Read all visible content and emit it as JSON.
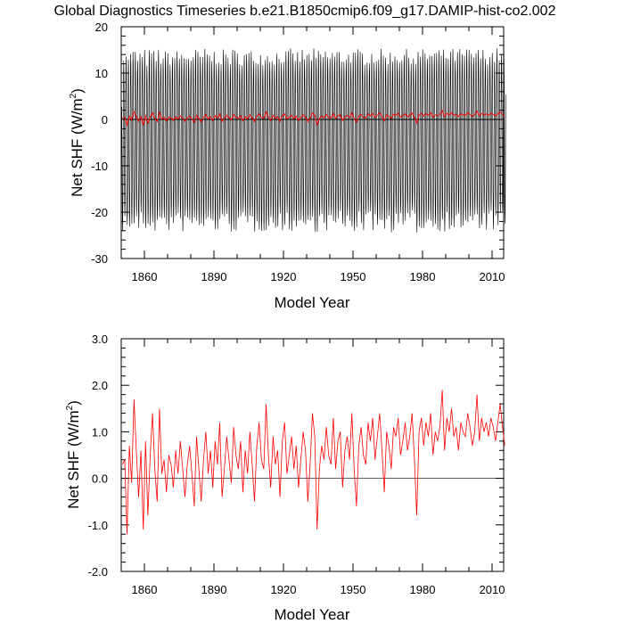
{
  "title": "Global Diagnostics Timeseries b.e21.B1850cmip6.f09_g17.DAMIP-hist-co2.002",
  "colors": {
    "monthly": "#000000",
    "annual": "#ff0000",
    "zero_line": "#000000"
  },
  "chart_data": [
    {
      "type": "line",
      "xlabel": "Model Year",
      "ylabel": "Net SHF (W/m",
      "ylabel_sup": "2",
      "ylabel_close": ")",
      "xlim": [
        1850,
        2015
      ],
      "ylim": [
        -30,
        20
      ],
      "xticks": [
        1860,
        1890,
        1920,
        1950,
        1980,
        2010
      ],
      "xtick_labels": [
        "1860",
        "1890",
        "1920",
        "1950",
        "1980",
        "2010"
      ],
      "yticks": [
        -30,
        -20,
        -10,
        0,
        10,
        20
      ],
      "ytick_labels": [
        "-30",
        "-20",
        "-10",
        "0",
        "10",
        "20"
      ],
      "series": [
        {
          "kind": "monthly",
          "years": [
            1850,
            2015
          ],
          "approx_range": [
            -25,
            15
          ]
        },
        {
          "kind": "annual",
          "years": [
            1850,
            2015
          ]
        }
      ]
    },
    {
      "type": "line",
      "xlabel": "Model Year",
      "ylabel": "Net SHF (W/m",
      "ylabel_sup": "2",
      "ylabel_close": ")",
      "xlim": [
        1850,
        2015
      ],
      "ylim": [
        -2.0,
        3.0
      ],
      "xticks": [
        1860,
        1890,
        1920,
        1950,
        1980,
        2010
      ],
      "xtick_labels": [
        "1860",
        "1890",
        "1920",
        "1950",
        "1980",
        "2010"
      ],
      "yticks": [
        -2.0,
        -1.0,
        0.0,
        1.0,
        2.0,
        3.0
      ],
      "ytick_labels": [
        "-2.0",
        "-1.0",
        "0.0",
        "1.0",
        "2.0",
        "3.0"
      ],
      "series": [
        {
          "kind": "annual",
          "x_start": 1850,
          "values": [
            0.3,
            0.4,
            -1.2,
            0.7,
            -0.1,
            1.7,
            0.6,
            -0.4,
            0.6,
            -1.1,
            0.8,
            -0.8,
            0.5,
            1.4,
            0.2,
            -0.5,
            1.5,
            0.1,
            0.4,
            -0.3,
            0.5,
            0.3,
            -0.2,
            0.6,
            0.1,
            0.8,
            0.2,
            -0.4,
            0.3,
            0.7,
            0.1,
            -0.6,
            0.9,
            0.2,
            -0.5,
            0.4,
            1.0,
            0.1,
            0.6,
            -0.2,
            0.8,
            0.3,
            1.2,
            -0.4,
            0.2,
            0.9,
            0.4,
            -0.1,
            1.1,
            0.5,
            0.2,
            0.8,
            -0.3,
            0.6,
            0.1,
            1.0,
            0.3,
            -0.5,
            0.7,
            1.2,
            0.4,
            0.2,
            1.6,
            0.5,
            -0.2,
            0.9,
            0.3,
            0.6,
            -0.4,
            0.8,
            1.2,
            0.1,
            0.5,
            0.9,
            0.2,
            0.7,
            -0.2,
            0.4,
            1.0,
            0.6,
            -0.5,
            0.3,
            1.4,
            0.9,
            -1.1,
            0.2,
            0.7,
            0.4,
            1.1,
            0.5,
            0.3,
            1.3,
            0.2,
            0.8,
            1.0,
            -0.2,
            0.6,
            0.9,
            0.4,
            1.4,
            0.2,
            -0.6,
            0.7,
            1.1,
            0.5,
            0.3,
            1.2,
            0.8,
            1.3,
            0.4,
            0.9,
            1.4,
            0.6,
            -0.3,
            1.0,
            0.7,
            0.2,
            1.1,
            0.9,
            1.3,
            0.5,
            0.8,
            1.2,
            0.6,
            0.9,
            1.4,
            0.4,
            -0.8,
            1.0,
            1.3,
            0.7,
            1.2,
            0.9,
            1.4,
            0.5,
            1.0,
            0.8,
            1.1,
            1.9,
            0.6,
            1.3,
            1.0,
            1.5,
            0.9,
            1.1,
            0.6,
            1.2,
            1.0,
            0.9,
            1.4,
            1.1,
            0.7,
            1.0,
            1.8,
            0.8,
            1.3,
            1.0,
            1.2,
            0.9,
            1.3,
            1.1,
            0.8,
            1.2,
            1.6,
            1.1,
            0.7
          ]
        }
      ]
    }
  ]
}
